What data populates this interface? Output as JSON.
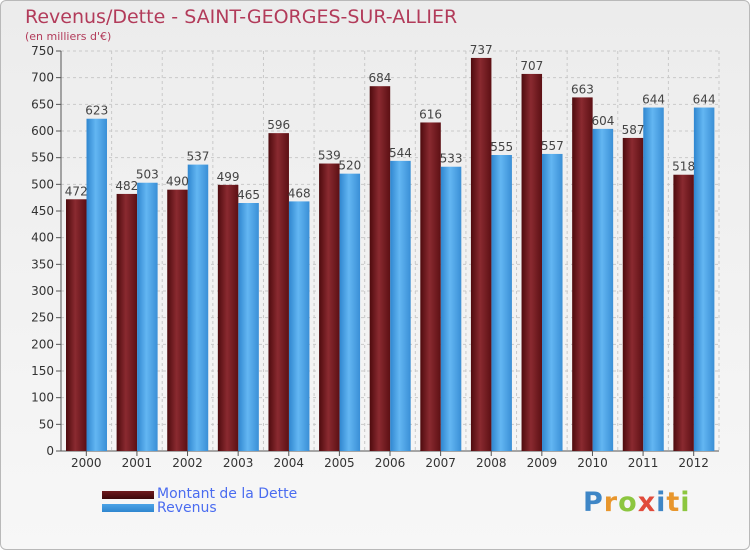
{
  "header": {
    "title": "Revenus/Dette - SAINT-GEORGES-SUR-ALLIER",
    "subtitle": "(en milliers d'€)"
  },
  "legend": {
    "items": [
      {
        "label": "Montant de la Dette",
        "color": "#6e1a1e"
      },
      {
        "label": "Revenus",
        "color": "#4ca3e6"
      }
    ]
  },
  "logo": {
    "text": "Proxiti",
    "letters": [
      "P",
      "r",
      "o",
      "x",
      "i",
      "t",
      "i"
    ],
    "letter_colors": [
      "#3e86c6",
      "#e8962c",
      "#8cc63f",
      "#e14b3b",
      "#3e86c6",
      "#e8962c",
      "#8cc63f"
    ]
  },
  "chart_data": {
    "type": "bar",
    "title": "Revenus/Dette - SAINT-GEORGES-SUR-ALLIER",
    "subtitle": "(en milliers d'€)",
    "categories": [
      "2000",
      "2001",
      "2002",
      "2003",
      "2004",
      "2005",
      "2006",
      "2007",
      "2008",
      "2009",
      "2010",
      "2011",
      "2012"
    ],
    "series": [
      {
        "name": "Montant de la Dette",
        "color": "#6e1a1e",
        "values": [
          472,
          482,
          490,
          499,
          596,
          539,
          684,
          616,
          737,
          707,
          663,
          587,
          518
        ]
      },
      {
        "name": "Revenus",
        "color": "#4ca3e6",
        "values": [
          623,
          503,
          537,
          465,
          468,
          520,
          544,
          533,
          555,
          557,
          604,
          644,
          644
        ]
      }
    ],
    "yticks": [
      0,
      50,
      100,
      150,
      200,
      250,
      300,
      350,
      400,
      450,
      500,
      550,
      600,
      650,
      700,
      750
    ],
    "ylim": [
      0,
      750
    ],
    "grid": true,
    "legend_position": "bottom-left"
  }
}
